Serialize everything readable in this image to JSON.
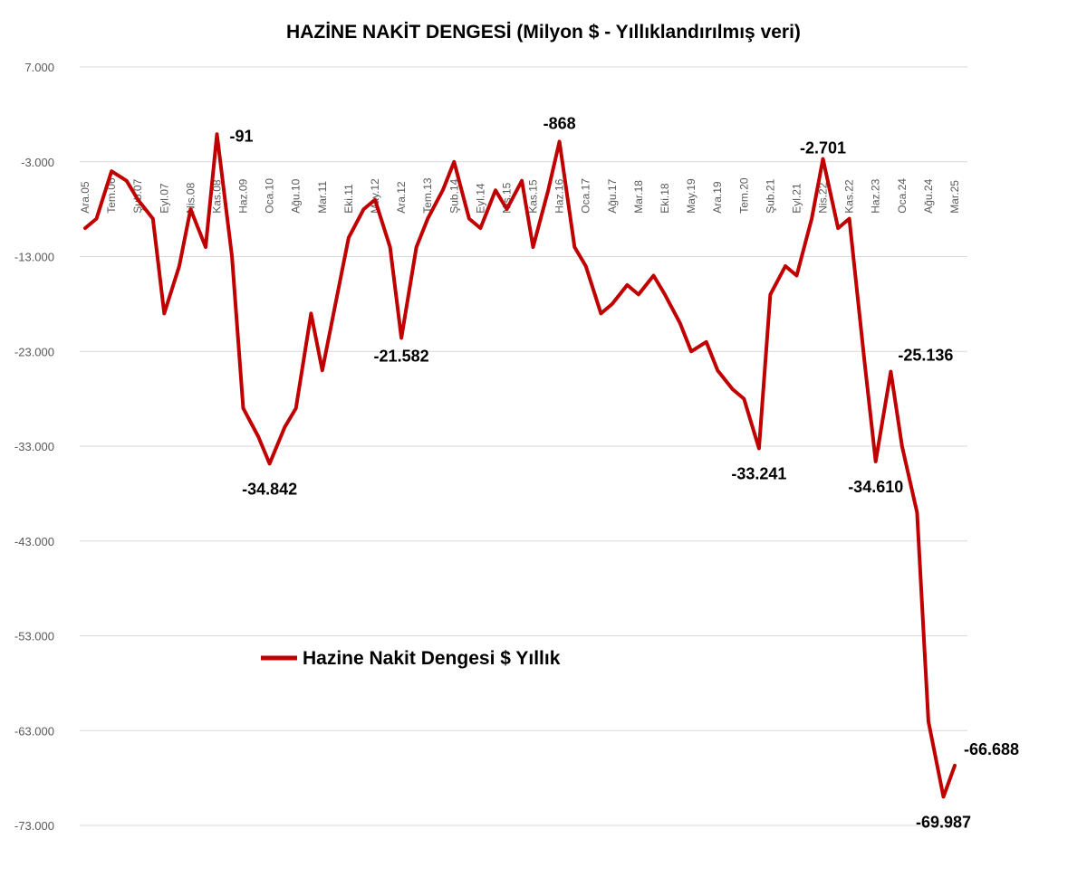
{
  "chart_data": {
    "type": "line",
    "title": "HAZİNE NAKİT DENGESİ (Milyon $ - Yıllıklandırılmış veri)",
    "xlabel": "",
    "ylabel": "",
    "ylim": [
      -73000,
      7000
    ],
    "yticks": [
      7000,
      -3000,
      -13000,
      -23000,
      -33000,
      -43000,
      -53000,
      -63000,
      -73000
    ],
    "ytick_labels": [
      "7.000",
      "-3.000",
      "-13.000",
      "-23.000",
      "-33.000",
      "-43.000",
      "-53.000",
      "-63.000",
      "-73.000"
    ],
    "x_categories": [
      "Ara.05",
      "Tem.06",
      "Şub.07",
      "Eyl.07",
      "Nis.08",
      "Kas.08",
      "Haz.09",
      "Oca.10",
      "Ağu.10",
      "Mar.11",
      "Eki.11",
      "May.12",
      "Ara.12",
      "Tem.13",
      "Şub.14",
      "Eyl.14",
      "Nis.15",
      "Kas.15",
      "Haz.16",
      "Oca.17",
      "Ağu.17",
      "Mar.18",
      "Eki.18",
      "May.19",
      "Ara.19",
      "Tem.20",
      "Şub.21",
      "Eyl.21",
      "Nis.22",
      "Kas.22",
      "Haz.23",
      "Oca.24",
      "Ağu.24",
      "Mar.25"
    ],
    "grid": true,
    "legend_position": "center-left",
    "color": "#c00000",
    "series": [
      {
        "name": "Hazine Nakit Dengesi $ Yıllık",
        "x": [
          "Ara.05",
          "Mar.06",
          "Tem.06",
          "Kas.06",
          "Şub.07",
          "Haz.07",
          "Eyl.07",
          "Oca.08",
          "Nis.08",
          "Ağu.08",
          "Kas.08",
          "Mar.09",
          "Haz.09",
          "Eki.09",
          "Oca.10",
          "May.10",
          "Ağu.10",
          "Ara.10",
          "Mar.11",
          "Tem.11",
          "Eki.11",
          "Şub.12",
          "May.12",
          "Eyl.12",
          "Ara.12",
          "Nis.13",
          "Tem.13",
          "Kas.13",
          "Şub.14",
          "Haz.14",
          "Eyl.14",
          "Oca.15",
          "Nis.15",
          "Ağu.15",
          "Kas.15",
          "Mar.16",
          "Haz.16",
          "Eki.16",
          "Oca.17",
          "May.17",
          "Ağu.17",
          "Ara.17",
          "Mar.18",
          "Tem.18",
          "Eki.18",
          "Şub.19",
          "May.19",
          "Eyl.19",
          "Ara.19",
          "Nis.20",
          "Tem.20",
          "Kas.20",
          "Şub.21",
          "Haz.21",
          "Eyl.21",
          "Oca.22",
          "Nis.22",
          "Ağu.22",
          "Kas.22",
          "Mar.23",
          "Haz.23",
          "Eki.23",
          "Oca.24",
          "May.24",
          "Ağu.24",
          "Ara.24",
          "Mar.25"
        ],
        "values": [
          -10000,
          -9000,
          -4000,
          -5000,
          -7000,
          -9000,
          -19000,
          -14000,
          -8000,
          -12000,
          -91,
          -13000,
          -29000,
          -32000,
          -34842,
          -31000,
          -29000,
          -19000,
          -25000,
          -17000,
          -11000,
          -8000,
          -7000,
          -12000,
          -21582,
          -12000,
          -9000,
          -6000,
          -3000,
          -9000,
          -10000,
          -6000,
          -8000,
          -5000,
          -12000,
          -6000,
          -868,
          -12000,
          -14000,
          -19000,
          -18000,
          -16000,
          -17000,
          -15000,
          -17000,
          -20000,
          -23000,
          -22000,
          -25000,
          -27000,
          -28000,
          -33241,
          -17000,
          -14000,
          -15000,
          -9000,
          -2701,
          -10000,
          -9000,
          -24000,
          -34610,
          -25136,
          -33000,
          -40000,
          -62000,
          -69987,
          -66688
        ]
      }
    ],
    "annotations": [
      {
        "x": "Kas.08",
        "value": -91,
        "text": "-91"
      },
      {
        "x": "Oca.10",
        "value": -34842,
        "text": "-34.842"
      },
      {
        "x": "Ara.12",
        "value": -21582,
        "text": "-21.582"
      },
      {
        "x": "Haz.16",
        "value": -868,
        "text": "-868"
      },
      {
        "x": "Kas.20",
        "value": -33241,
        "text": "-33.241"
      },
      {
        "x": "Nis.22",
        "value": -2701,
        "text": "-2.701"
      },
      {
        "x": "Haz.23",
        "value": -34610,
        "text": "-34.610"
      },
      {
        "x": "Eki.23",
        "value": -25136,
        "text": "-25.136"
      },
      {
        "x": "Ara.24",
        "value": -69987,
        "text": "-69.987"
      },
      {
        "x": "Mar.25",
        "value": -66688,
        "text": "-66.688"
      }
    ]
  }
}
